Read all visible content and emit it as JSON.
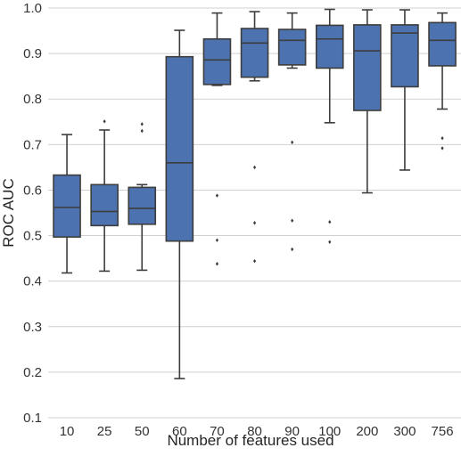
{
  "chart_data": {
    "type": "box",
    "xlabel": "Number of features used",
    "ylabel": "ROC AUC",
    "ylim": [
      0.1,
      1.0
    ],
    "yticks": [
      "0.1",
      "0.2",
      "0.3",
      "0.4",
      "0.5",
      "0.6",
      "0.7",
      "0.8",
      "0.9",
      "1.0"
    ],
    "grid": "horizontal",
    "box_color": "#4c72b0",
    "line_color": "#3d3d3d",
    "grid_color": "#d0d0d0",
    "categories": [
      "10",
      "25",
      "50",
      "60",
      "70",
      "80",
      "90",
      "100",
      "200",
      "300",
      "756"
    ],
    "boxes": [
      {
        "whisker_low": 0.418,
        "q1": 0.497,
        "median": 0.562,
        "q3": 0.633,
        "whisker_high": 0.722,
        "outliers": []
      },
      {
        "whisker_low": 0.422,
        "q1": 0.522,
        "median": 0.553,
        "q3": 0.612,
        "whisker_high": 0.732,
        "outliers": [
          0.751
        ]
      },
      {
        "whisker_low": 0.424,
        "q1": 0.525,
        "median": 0.56,
        "q3": 0.606,
        "whisker_high": 0.612,
        "outliers": [
          0.745,
          0.73
        ]
      },
      {
        "whisker_low": 0.186,
        "q1": 0.488,
        "median": 0.66,
        "q3": 0.893,
        "whisker_high": 0.951,
        "outliers": []
      },
      {
        "whisker_low": 0.83,
        "q1": 0.832,
        "median": 0.886,
        "q3": 0.932,
        "whisker_high": 0.989,
        "outliers": [
          0.588,
          0.49,
          0.438
        ]
      },
      {
        "whisker_low": 0.84,
        "q1": 0.848,
        "median": 0.923,
        "q3": 0.955,
        "whisker_high": 0.992,
        "outliers": [
          0.65,
          0.528,
          0.444
        ]
      },
      {
        "whisker_low": 0.868,
        "q1": 0.875,
        "median": 0.929,
        "q3": 0.953,
        "whisker_high": 0.989,
        "outliers": [
          0.705,
          0.533,
          0.47
        ]
      },
      {
        "whisker_low": 0.748,
        "q1": 0.868,
        "median": 0.932,
        "q3": 0.962,
        "whisker_high": 0.997,
        "outliers": [
          0.53,
          0.486
        ]
      },
      {
        "whisker_low": 0.594,
        "q1": 0.775,
        "median": 0.906,
        "q3": 0.963,
        "whisker_high": 0.996,
        "outliers": []
      },
      {
        "whisker_low": 0.644,
        "q1": 0.827,
        "median": 0.945,
        "q3": 0.963,
        "whisker_high": 0.996,
        "outliers": []
      },
      {
        "whisker_low": 0.778,
        "q1": 0.873,
        "median": 0.929,
        "q3": 0.968,
        "whisker_high": 0.989,
        "outliers": [
          0.714,
          0.692
        ]
      }
    ]
  }
}
